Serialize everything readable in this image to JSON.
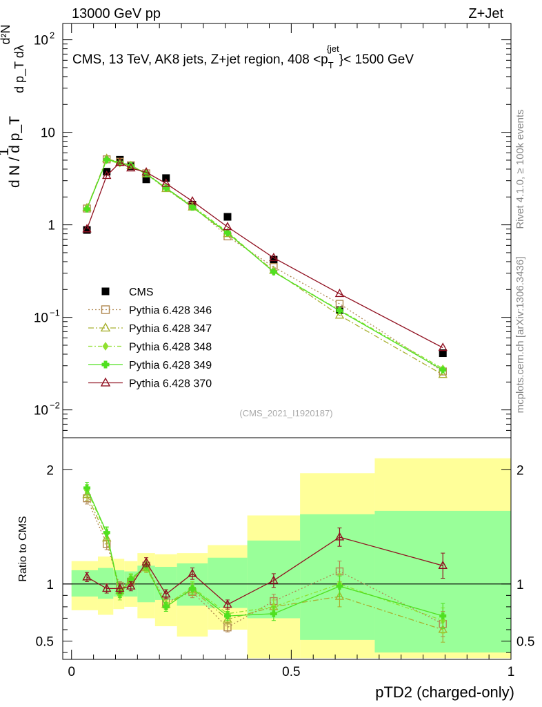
{
  "header": {
    "left": "13000 GeV pp",
    "right": "Z+Jet"
  },
  "side_labels": {
    "rivet": "Rivet 4.1.0, ≥ 100k events",
    "mcplots": "mcplots.cern.ch [arXiv:1306.3436]"
  },
  "watermark": "(CMS_2021_I1920187)",
  "colors": {
    "cms": "#000000",
    "p346": "#b08850",
    "p347": "#a8b030",
    "p348": "#90e030",
    "p349": "#50e020",
    "p370": "#901020",
    "band_outer": "#ffff99",
    "band_inner": "#99ff99"
  },
  "chart_data": [
    {
      "type": "scatter",
      "panel": "main",
      "title": "CMS, 13 TeV, AK8 jets, Z+jet region, 408 <p_T^{jet}< 1500 GeV",
      "title_parts": {
        "prefix": "CMS, 13 TeV, AK8 jets, Z+jet region, 408 <p",
        "sub": "T",
        "sup": "{jet",
        "suffix": "}< 1500 GeV"
      },
      "ylabel": "1/(dN/dp_T) d²N/(dp_T dλ)",
      "ylabel_parts": {
        "num": "d²N",
        "num_tail": "d p_T dλ",
        "den": "d N / d p_T",
        "one": "1"
      },
      "yscale": "log",
      "ylim": [
        0.005,
        150
      ],
      "xlim": [
        -0.02,
        1.0
      ],
      "ytick_labels": [
        {
          "value": 0.01,
          "base": "10",
          "exp": "−2"
        },
        {
          "value": 0.1,
          "base": "10",
          "exp": "−1"
        },
        {
          "value": 1,
          "base": "1",
          "exp": ""
        },
        {
          "value": 10,
          "base": "10",
          "exp": ""
        },
        {
          "value": 100,
          "base": "10",
          "exp": "2"
        }
      ],
      "legend_position": "left-middle",
      "series": [
        {
          "name": "CMS",
          "style": "square-filled",
          "color": "#000000",
          "x": [
            0.035,
            0.08,
            0.11,
            0.135,
            0.17,
            0.215,
            0.275,
            0.355,
            0.46,
            0.61,
            0.845
          ],
          "y": [
            0.88,
            3.75,
            5.05,
            4.3,
            3.1,
            3.2,
            1.65,
            1.22,
            0.42,
            0.12,
            0.041
          ]
        },
        {
          "name": "Pythia 6.428 346",
          "style": "square-open-dotted",
          "color": "#b08850",
          "x": [
            0.035,
            0.08,
            0.11,
            0.135,
            0.17,
            0.215,
            0.275,
            0.355,
            0.46,
            0.61,
            0.845
          ],
          "y": [
            1.5,
            5.1,
            4.8,
            4.4,
            3.6,
            2.5,
            1.6,
            0.75,
            0.35,
            0.14,
            0.026
          ]
        },
        {
          "name": "Pythia 6.428 347",
          "style": "triangle-open-dashdot",
          "color": "#a8b030",
          "x": [
            0.035,
            0.08,
            0.11,
            0.135,
            0.17,
            0.215,
            0.275,
            0.355,
            0.46,
            0.61,
            0.845
          ],
          "y": [
            1.52,
            5.2,
            4.7,
            4.35,
            3.55,
            2.45,
            1.55,
            0.8,
            0.32,
            0.105,
            0.024
          ]
        },
        {
          "name": "Pythia 6.428 348",
          "style": "diamond-dashdot",
          "color": "#90e030",
          "x": [
            0.035,
            0.08,
            0.11,
            0.135,
            0.17,
            0.215,
            0.275,
            0.355,
            0.46,
            0.61,
            0.845
          ],
          "y": [
            1.5,
            5.0,
            4.6,
            4.4,
            3.6,
            2.5,
            1.6,
            0.84,
            0.31,
            0.12,
            0.028
          ]
        },
        {
          "name": "Pythia 6.428 349",
          "style": "cross-solid",
          "color": "#50e020",
          "x": [
            0.035,
            0.08,
            0.11,
            0.135,
            0.17,
            0.215,
            0.275,
            0.355,
            0.46,
            0.61,
            0.845
          ],
          "y": [
            1.48,
            5.05,
            4.75,
            4.35,
            3.55,
            2.5,
            1.55,
            0.82,
            0.31,
            0.118,
            0.027
          ]
        },
        {
          "name": "Pythia 6.428 370",
          "style": "triangle-open-solid",
          "color": "#901020",
          "x": [
            0.035,
            0.08,
            0.11,
            0.135,
            0.17,
            0.215,
            0.275,
            0.355,
            0.46,
            0.61,
            0.845
          ],
          "y": [
            0.9,
            3.4,
            4.7,
            4.1,
            3.7,
            2.8,
            1.8,
            0.95,
            0.44,
            0.18,
            0.047
          ]
        }
      ]
    },
    {
      "type": "line",
      "panel": "ratio",
      "ylabel": "Ratio to CMS",
      "xlabel": "pTD2 (charged-only)",
      "ylim": [
        0.34,
        2.28
      ],
      "xlim": [
        -0.02,
        1.0
      ],
      "xticks": [
        0,
        0.5,
        1
      ],
      "xtick_labels": [
        "0",
        "0.5",
        "1"
      ],
      "yticks": [
        0.5,
        1,
        2
      ],
      "ytick_labels": [
        "0.5",
        "1",
        "2"
      ],
      "bin_edges": [
        0,
        0.06,
        0.095,
        0.12,
        0.15,
        0.19,
        0.24,
        0.31,
        0.4,
        0.52,
        0.69,
        1.0
      ],
      "band_outer": {
        "lo": [
          0.77,
          0.73,
          0.78,
          0.8,
          0.7,
          0.63,
          0.54,
          0.6,
          0.35,
          0.35,
          0.35
        ],
        "hi": [
          1.2,
          1.24,
          1.22,
          1.2,
          1.27,
          1.26,
          1.27,
          1.34,
          1.6,
          1.97,
          2.1
        ]
      },
      "band_inner": {
        "lo": [
          0.89,
          0.87,
          0.89,
          0.89,
          0.84,
          0.86,
          0.81,
          0.79,
          0.7,
          0.51,
          0.4
        ],
        "hi": [
          1.12,
          1.14,
          1.12,
          1.11,
          1.16,
          1.15,
          1.18,
          1.23,
          1.38,
          1.61,
          1.64
        ]
      },
      "series": [
        {
          "name": "Pythia 6.428 346",
          "x": [
            0.035,
            0.08,
            0.11,
            0.135,
            0.17,
            0.215,
            0.275,
            0.355,
            0.46,
            0.61,
            0.845
          ],
          "y": [
            1.75,
            1.35,
            0.98,
            1.02,
            1.16,
            0.84,
            0.93,
            0.62,
            0.85,
            1.11,
            0.65
          ],
          "err": [
            0.05,
            0.05,
            0.04,
            0.04,
            0.04,
            0.04,
            0.05,
            0.04,
            0.06,
            0.09,
            0.11
          ]
        },
        {
          "name": "Pythia 6.428 347",
          "x": [
            0.035,
            0.08,
            0.11,
            0.135,
            0.17,
            0.215,
            0.275,
            0.355,
            0.46,
            0.61,
            0.845
          ],
          "y": [
            1.78,
            1.4,
            0.94,
            1.03,
            1.14,
            0.82,
            0.95,
            0.69,
            0.8,
            0.89,
            0.6
          ],
          "err": [
            0.05,
            0.05,
            0.04,
            0.04,
            0.04,
            0.04,
            0.05,
            0.04,
            0.06,
            0.09,
            0.11
          ]
        },
        {
          "name": "Pythia 6.428 348",
          "x": [
            0.035,
            0.08,
            0.11,
            0.135,
            0.17,
            0.215,
            0.275,
            0.355,
            0.46,
            0.61,
            0.845
          ],
          "y": [
            1.82,
            1.44,
            0.9,
            1.05,
            1.15,
            0.82,
            0.97,
            0.74,
            0.8,
            1.0,
            0.68
          ],
          "err": [
            0.05,
            0.05,
            0.04,
            0.04,
            0.04,
            0.04,
            0.05,
            0.04,
            0.06,
            0.09,
            0.11
          ]
        },
        {
          "name": "Pythia 6.428 349",
          "x": [
            0.035,
            0.08,
            0.11,
            0.135,
            0.17,
            0.215,
            0.275,
            0.355,
            0.46,
            0.61,
            0.845
          ],
          "y": [
            1.84,
            1.45,
            0.92,
            1.04,
            1.16,
            0.8,
            0.96,
            0.72,
            0.74,
            0.98,
            0.72
          ],
          "err": [
            0.05,
            0.05,
            0.04,
            0.04,
            0.04,
            0.04,
            0.05,
            0.04,
            0.06,
            0.09,
            0.11
          ]
        },
        {
          "name": "Pythia 6.428 370",
          "x": [
            0.035,
            0.08,
            0.11,
            0.135,
            0.17,
            0.215,
            0.275,
            0.355,
            0.46,
            0.61,
            0.845
          ],
          "y": [
            1.06,
            0.96,
            0.96,
            0.98,
            1.19,
            0.91,
            1.09,
            0.82,
            1.03,
            1.41,
            1.16
          ],
          "err": [
            0.04,
            0.04,
            0.04,
            0.04,
            0.04,
            0.04,
            0.05,
            0.04,
            0.06,
            0.08,
            0.11
          ]
        }
      ]
    }
  ]
}
